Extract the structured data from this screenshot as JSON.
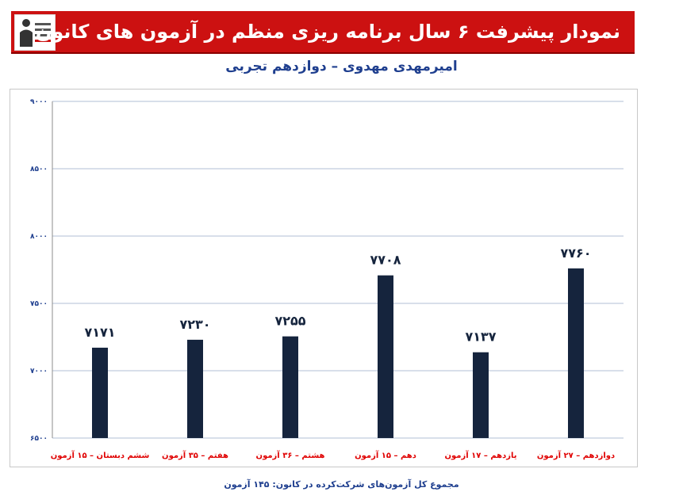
{
  "header": {
    "title": "نمودار پیشرفت ۶ سال برنامه ریزی منظم در آزمون های کانون"
  },
  "subtitle": "امیرمهدی مهدوی – دوازدهم تجربی",
  "footer": "مجموع کل آزمون‌های شرکت‌کرده در کانون:  ۱۴۵ آزمون",
  "chart_data": {
    "type": "bar",
    "categories": [
      "ششم دبستان – ۱۵ آزمون",
      "هفتم – ۳۵ آزمون",
      "هشتم – ۳۶ آزمون",
      "دهم – ۱۵ آزمون",
      "یازدهم – ۱۷ آزمون",
      "دوازدهم – ۲۷ آزمون"
    ],
    "values": [
      7171,
      7230,
      7255,
      7708,
      7137,
      7760
    ],
    "value_labels": [
      "۷۱۷۱",
      "۷۲۳۰",
      "۷۲۵۵",
      "۷۷۰۸",
      "۷۱۳۷",
      "۷۷۶۰"
    ],
    "ylim": [
      6500,
      9000
    ],
    "yticks": [
      6500,
      7000,
      7500,
      8000,
      8500,
      9000
    ],
    "ytick_labels": [
      "۶۵۰۰",
      "۷۰۰۰",
      "۷۵۰۰",
      "۸۰۰۰",
      "۸۵۰۰",
      "۹۰۰۰"
    ],
    "grid": true,
    "colors": {
      "bar": "#15243d",
      "grid": "#b0bfd6",
      "category_label": "#e00000",
      "value_label": "#15243d",
      "axis_text": "#1f3f8f"
    }
  }
}
